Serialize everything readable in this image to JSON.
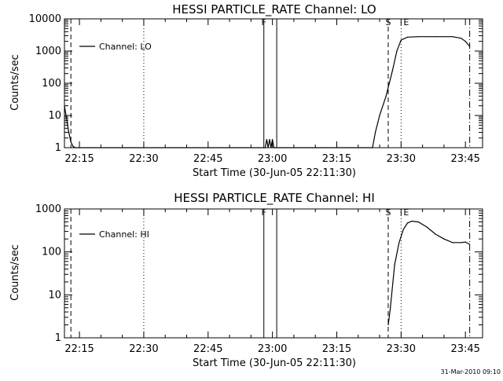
{
  "stamp": "31-Mar-2010 09:10",
  "chart_data": [
    {
      "type": "line",
      "title": "HESSI PARTICLE_RATE Channel: LO",
      "xlabel": "Start Time (30-Jun-05 22:11:30)",
      "ylabel": "Counts/sec",
      "yscale": "log",
      "xlim": [
        "22:11:30",
        "23:49:00"
      ],
      "ylim": [
        1,
        10000
      ],
      "xticks": [
        "22:15",
        "22:30",
        "22:45",
        "23:00",
        "23:15",
        "23:30",
        "23:45"
      ],
      "yticks": [
        "1",
        "10",
        "100",
        "1000",
        "10000"
      ],
      "legend_position": "top-left",
      "series": [
        {
          "name": "Channel: LO",
          "x": [
            "22:11:30",
            "22:12:00",
            "22:12:30",
            "22:13:00",
            "22:13:30",
            "22:14:00",
            "22:58:20",
            "22:58:40",
            "22:59:00",
            "22:59:20",
            "22:59:40",
            "23:00:00",
            "23:00:20",
            "23:23:20",
            "23:24:00",
            "23:25:00",
            "23:26:30",
            "23:28:00",
            "23:29:00",
            "23:30:00",
            "23:31:30",
            "23:34:00",
            "23:38:00",
            "23:42:00",
            "23:44:00",
            "23:45:00",
            "23:46:00"
          ],
          "y": [
            20,
            8,
            3,
            1.5,
            1.1,
            1,
            1,
            1.8,
            1,
            1.8,
            1,
            1.8,
            1,
            1,
            3,
            10,
            40,
            250,
            1000,
            2200,
            2700,
            2800,
            2800,
            2800,
            2500,
            2000,
            1400
          ]
        }
      ],
      "markers": [
        {
          "label": "F",
          "time": "22:58:00",
          "style": "solid"
        },
        {
          "label": "",
          "time": "23:01:00",
          "style": "solid"
        },
        {
          "label": "S",
          "time": "23:27:00",
          "style": "dashed"
        },
        {
          "label": "E",
          "time": "23:30:00",
          "style": "dotted"
        },
        {
          "label": "",
          "time": "23:46:00",
          "style": "dashdot"
        },
        {
          "label": "",
          "time": "22:13:00",
          "style": "dashed"
        },
        {
          "label": "",
          "time": "22:30:00",
          "style": "dotted"
        }
      ]
    },
    {
      "type": "line",
      "title": "HESSI PARTICLE_RATE Channel: HI",
      "xlabel": "Start Time (30-Jun-05 22:11:30)",
      "ylabel": "Counts/sec",
      "yscale": "log",
      "xlim": [
        "22:11:30",
        "23:49:00"
      ],
      "ylim": [
        1,
        1000
      ],
      "xticks": [
        "22:15",
        "22:30",
        "22:45",
        "23:00",
        "23:15",
        "23:30",
        "23:45"
      ],
      "yticks": [
        "1",
        "10",
        "100",
        "1000"
      ],
      "legend_position": "top-left",
      "series": [
        {
          "name": "Channel: HI",
          "x": [
            "23:27:00",
            "23:27:30",
            "23:28:30",
            "23:29:30",
            "23:30:30",
            "23:31:30",
            "23:32:30",
            "23:34:00",
            "23:36:00",
            "23:38:00",
            "23:40:00",
            "23:42:00",
            "23:44:00",
            "23:45:00",
            "23:46:00"
          ],
          "y": [
            2,
            5,
            50,
            160,
            330,
            470,
            520,
            500,
            380,
            260,
            200,
            165,
            165,
            170,
            150
          ]
        }
      ],
      "markers": [
        {
          "label": "F",
          "time": "22:58:00",
          "style": "solid"
        },
        {
          "label": "",
          "time": "23:01:00",
          "style": "solid"
        },
        {
          "label": "S",
          "time": "23:27:00",
          "style": "dashed"
        },
        {
          "label": "E",
          "time": "23:30:00",
          "style": "dotted"
        },
        {
          "label": "",
          "time": "23:46:00",
          "style": "dashdot"
        },
        {
          "label": "",
          "time": "22:13:00",
          "style": "dashed"
        },
        {
          "label": "",
          "time": "22:30:00",
          "style": "dotted"
        }
      ]
    }
  ]
}
